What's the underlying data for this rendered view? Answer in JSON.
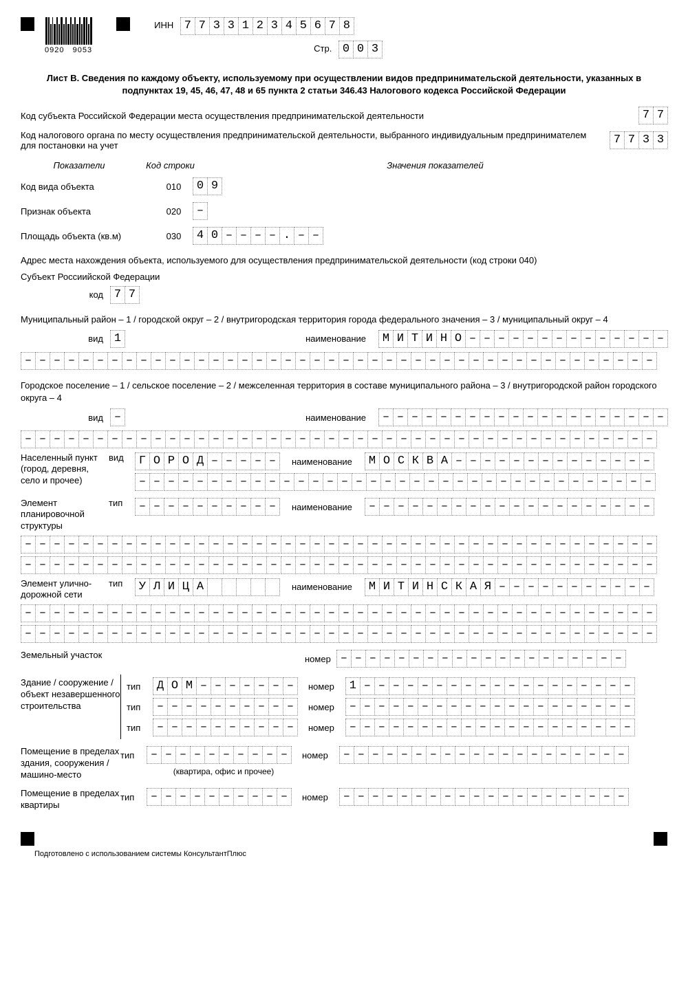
{
  "header": {
    "barcode_left": "0920",
    "barcode_right": "9053",
    "inn_label": "ИНН",
    "inn": [
      "7",
      "7",
      "3",
      "3",
      "1",
      "2",
      "3",
      "4",
      "5",
      "6",
      "7",
      "8"
    ],
    "page_label": "Стр.",
    "page": [
      "0",
      "0",
      "3"
    ]
  },
  "title": "Лист В. Сведения по каждому объекту, используемому при осуществлении видов предпринимательской деятельности, указанных в подпунктах 19, 45, 46, 47, 48 и 65 пункта 2 статьи 346.43 Налогового кодекса Российской Федерации",
  "subject_code": {
    "label": "Код субъекта Российской Федерации места осуществления предпринимательской деятельности",
    "value": [
      "7",
      "7"
    ]
  },
  "tax_code": {
    "label": "Код налогового органа по месту осуществления предпринимательской деятельности, выбранного индивидуальным предпринимателем для постановки на учет",
    "value": [
      "7",
      "7",
      "3",
      "3"
    ]
  },
  "headers": {
    "col1": "Показатели",
    "col2": "Код строки",
    "col3": "Значения показателей"
  },
  "rows": {
    "r010": {
      "label": "Код вида объекта",
      "code": "010",
      "value": [
        "0",
        "9"
      ]
    },
    "r020": {
      "label": "Признак объекта",
      "code": "020",
      "value": [
        "–"
      ]
    },
    "r030": {
      "label": "Площадь объекта (кв.м)",
      "code": "030",
      "value": [
        "4",
        "0",
        "–",
        "–",
        "–",
        "–",
        ".",
        "–",
        "–"
      ]
    }
  },
  "address_header": "Адрес места нахождения объекта, используемого для осуществления предпринимательской деятельности (код строки 040)",
  "subject_rf": {
    "label": "Субъект Россиийской Федерации",
    "code_label": "код",
    "value": [
      "7",
      "7"
    ]
  },
  "municipal": {
    "text": "Муниципальный район – 1 / городской округ – 2 / внутригородская территория города федерального значения – 3 / муниципальный округ – 4",
    "vid_label": "вид",
    "vid": [
      "1"
    ],
    "name_label": "наименование",
    "name": [
      "М",
      "И",
      "Т",
      "И",
      "Н",
      "О",
      "–",
      "–",
      "–",
      "–",
      "–",
      "–",
      "–",
      "–",
      "–",
      "–",
      "–",
      "–",
      "–",
      "–"
    ],
    "cont": [
      "–",
      "–",
      "–",
      "–",
      "–",
      "–",
      "–",
      "–",
      "–",
      "–",
      "–",
      "–",
      "–",
      "–",
      "–",
      "–",
      "–",
      "–",
      "–",
      "–",
      "–",
      "–",
      "–",
      "–",
      "–",
      "–",
      "–",
      "–",
      "–",
      "–",
      "–",
      "–",
      "–",
      "–",
      "–",
      "–",
      "–",
      "–",
      "–",
      "–",
      "–",
      "–",
      "–",
      "–"
    ]
  },
  "settlement": {
    "text": "Городское поселение – 1 / сельское поселение – 2 / межселенная территория в составе муниципального района – 3 / внутригородской район городского округа – 4",
    "vid_label": "вид",
    "vid": [
      "–"
    ],
    "name_label": "наименование",
    "name": [
      "–",
      "–",
      "–",
      "–",
      "–",
      "–",
      "–",
      "–",
      "–",
      "–",
      "–",
      "–",
      "–",
      "–",
      "–",
      "–",
      "–",
      "–",
      "–",
      "–"
    ],
    "cont": [
      "–",
      "–",
      "–",
      "–",
      "–",
      "–",
      "–",
      "–",
      "–",
      "–",
      "–",
      "–",
      "–",
      "–",
      "–",
      "–",
      "–",
      "–",
      "–",
      "–",
      "–",
      "–",
      "–",
      "–",
      "–",
      "–",
      "–",
      "–",
      "–",
      "–",
      "–",
      "–",
      "–",
      "–",
      "–",
      "–",
      "–",
      "–",
      "–",
      "–",
      "–",
      "–",
      "–",
      "–"
    ]
  },
  "locality": {
    "label": "Населенный пункт (город, деревня, село и прочее)",
    "vid_label": "вид",
    "vid": [
      "Г",
      "О",
      "Р",
      "О",
      "Д",
      "–",
      "–",
      "–",
      "–",
      "–"
    ],
    "name_label": "наименование",
    "name": [
      "М",
      "О",
      "С",
      "К",
      "В",
      "А",
      "–",
      "–",
      "–",
      "–",
      "–",
      "–",
      "–",
      "–",
      "–",
      "–",
      "–",
      "–",
      "–",
      "–"
    ],
    "cont": [
      "–",
      "–",
      "–",
      "–",
      "–",
      "–",
      "–",
      "–",
      "–",
      "–",
      "–",
      "–",
      "–",
      "–",
      "–",
      "–",
      "–",
      "–",
      "–",
      "–",
      "–",
      "–",
      "–",
      "–",
      "–",
      "–",
      "–",
      "–",
      "–",
      "–",
      "–",
      "–",
      "–",
      "–",
      "–",
      "–"
    ]
  },
  "plan_element": {
    "label": "Элемент планировочной структуры",
    "tip_label": "тип",
    "tip": [
      "–",
      "–",
      "–",
      "–",
      "–",
      "–",
      "–",
      "–",
      "–",
      "–"
    ],
    "name_label": "наименование",
    "name": [
      "–",
      "–",
      "–",
      "–",
      "–",
      "–",
      "–",
      "–",
      "–",
      "–",
      "–",
      "–",
      "–",
      "–",
      "–",
      "–",
      "–",
      "–",
      "–",
      "–"
    ],
    "cont1": [
      "–",
      "–",
      "–",
      "–",
      "–",
      "–",
      "–",
      "–",
      "–",
      "–",
      "–",
      "–",
      "–",
      "–",
      "–",
      "–",
      "–",
      "–",
      "–",
      "–",
      "–",
      "–",
      "–",
      "–",
      "–",
      "–",
      "–",
      "–",
      "–",
      "–",
      "–",
      "–",
      "–",
      "–",
      "–",
      "–",
      "–",
      "–",
      "–",
      "–",
      "–",
      "–",
      "–",
      "–"
    ],
    "cont2": [
      "–",
      "–",
      "–",
      "–",
      "–",
      "–",
      "–",
      "–",
      "–",
      "–",
      "–",
      "–",
      "–",
      "–",
      "–",
      "–",
      "–",
      "–",
      "–",
      "–",
      "–",
      "–",
      "–",
      "–",
      "–",
      "–",
      "–",
      "–",
      "–",
      "–",
      "–",
      "–",
      "–",
      "–",
      "–",
      "–",
      "–",
      "–",
      "–",
      "–",
      "–",
      "–",
      "–",
      "–"
    ]
  },
  "street": {
    "label": "Элемент улично-дорожной сети",
    "tip_label": "тип",
    "tip": [
      "У",
      "Л",
      "И",
      "Ц",
      "А",
      "",
      "",
      "",
      "",
      ""
    ],
    "name_label": "наименование",
    "name": [
      "М",
      "И",
      "Т",
      "И",
      "Н",
      "С",
      "К",
      "А",
      "Я",
      "–",
      "–",
      "–",
      "–",
      "–",
      "–",
      "–",
      "–",
      "–",
      "–",
      "–"
    ],
    "cont1": [
      "–",
      "–",
      "–",
      "–",
      "–",
      "–",
      "–",
      "–",
      "–",
      "–",
      "–",
      "–",
      "–",
      "–",
      "–",
      "–",
      "–",
      "–",
      "–",
      "–",
      "–",
      "–",
      "–",
      "–",
      "–",
      "–",
      "–",
      "–",
      "–",
      "–",
      "–",
      "–",
      "–",
      "–",
      "–",
      "–",
      "–",
      "–",
      "–",
      "–",
      "–",
      "–",
      "–",
      "–"
    ],
    "cont2": [
      "–",
      "–",
      "–",
      "–",
      "–",
      "–",
      "–",
      "–",
      "–",
      "–",
      "–",
      "–",
      "–",
      "–",
      "–",
      "–",
      "–",
      "–",
      "–",
      "–",
      "–",
      "–",
      "–",
      "–",
      "–",
      "–",
      "–",
      "–",
      "–",
      "–",
      "–",
      "–",
      "–",
      "–",
      "–",
      "–",
      "–",
      "–",
      "–",
      "–",
      "–",
      "–",
      "–",
      "–"
    ]
  },
  "land": {
    "label": "Земельный участок",
    "num_label": "номер",
    "num": [
      "–",
      "–",
      "–",
      "–",
      "–",
      "–",
      "–",
      "–",
      "–",
      "–",
      "–",
      "–",
      "–",
      "–",
      "–",
      "–",
      "–",
      "–",
      "–",
      "–"
    ]
  },
  "building": {
    "label": "Здание / сооружение / объект незавершенного строительства",
    "tip_label": "тип",
    "num_label": "номер",
    "r1_tip": [
      "Д",
      "О",
      "М",
      "–",
      "–",
      "–",
      "–",
      "–",
      "–",
      "–"
    ],
    "r1_num": [
      "1",
      "–",
      "–",
      "–",
      "–",
      "–",
      "–",
      "–",
      "–",
      "–",
      "–",
      "–",
      "–",
      "–",
      "–",
      "–",
      "–",
      "–",
      "–",
      "–"
    ],
    "r2_tip": [
      "–",
      "–",
      "–",
      "–",
      "–",
      "–",
      "–",
      "–",
      "–",
      "–"
    ],
    "r2_num": [
      "–",
      "–",
      "–",
      "–",
      "–",
      "–",
      "–",
      "–",
      "–",
      "–",
      "–",
      "–",
      "–",
      "–",
      "–",
      "–",
      "–",
      "–",
      "–",
      "–"
    ],
    "r3_tip": [
      "–",
      "–",
      "–",
      "–",
      "–",
      "–",
      "–",
      "–",
      "–",
      "–"
    ],
    "r3_num": [
      "–",
      "–",
      "–",
      "–",
      "–",
      "–",
      "–",
      "–",
      "–",
      "–",
      "–",
      "–",
      "–",
      "–",
      "–",
      "–",
      "–",
      "–",
      "–",
      "–"
    ]
  },
  "room": {
    "label": "Помещение в пределах здания, сооружения / машино-место",
    "tip_label": "тип",
    "tip": [
      "–",
      "–",
      "–",
      "–",
      "–",
      "–",
      "–",
      "–",
      "–",
      "–"
    ],
    "note": "(квартира, офис и прочее)",
    "num_label": "номер",
    "num": [
      "–",
      "–",
      "–",
      "–",
      "–",
      "–",
      "–",
      "–",
      "–",
      "–",
      "–",
      "–",
      "–",
      "–",
      "–",
      "–",
      "–",
      "–",
      "–",
      "–"
    ]
  },
  "room_in_apt": {
    "label": "Помещение в пределах квартиры",
    "tip_label": "тип",
    "tip": [
      "–",
      "–",
      "–",
      "–",
      "–",
      "–",
      "–",
      "–",
      "–",
      "–"
    ],
    "num_label": "номер",
    "num": [
      "–",
      "–",
      "–",
      "–",
      "–",
      "–",
      "–",
      "–",
      "–",
      "–",
      "–",
      "–",
      "–",
      "–",
      "–",
      "–",
      "–",
      "–",
      "–",
      "–"
    ]
  },
  "footer": "Подготовлено с использованием системы КонсультантПлюс"
}
